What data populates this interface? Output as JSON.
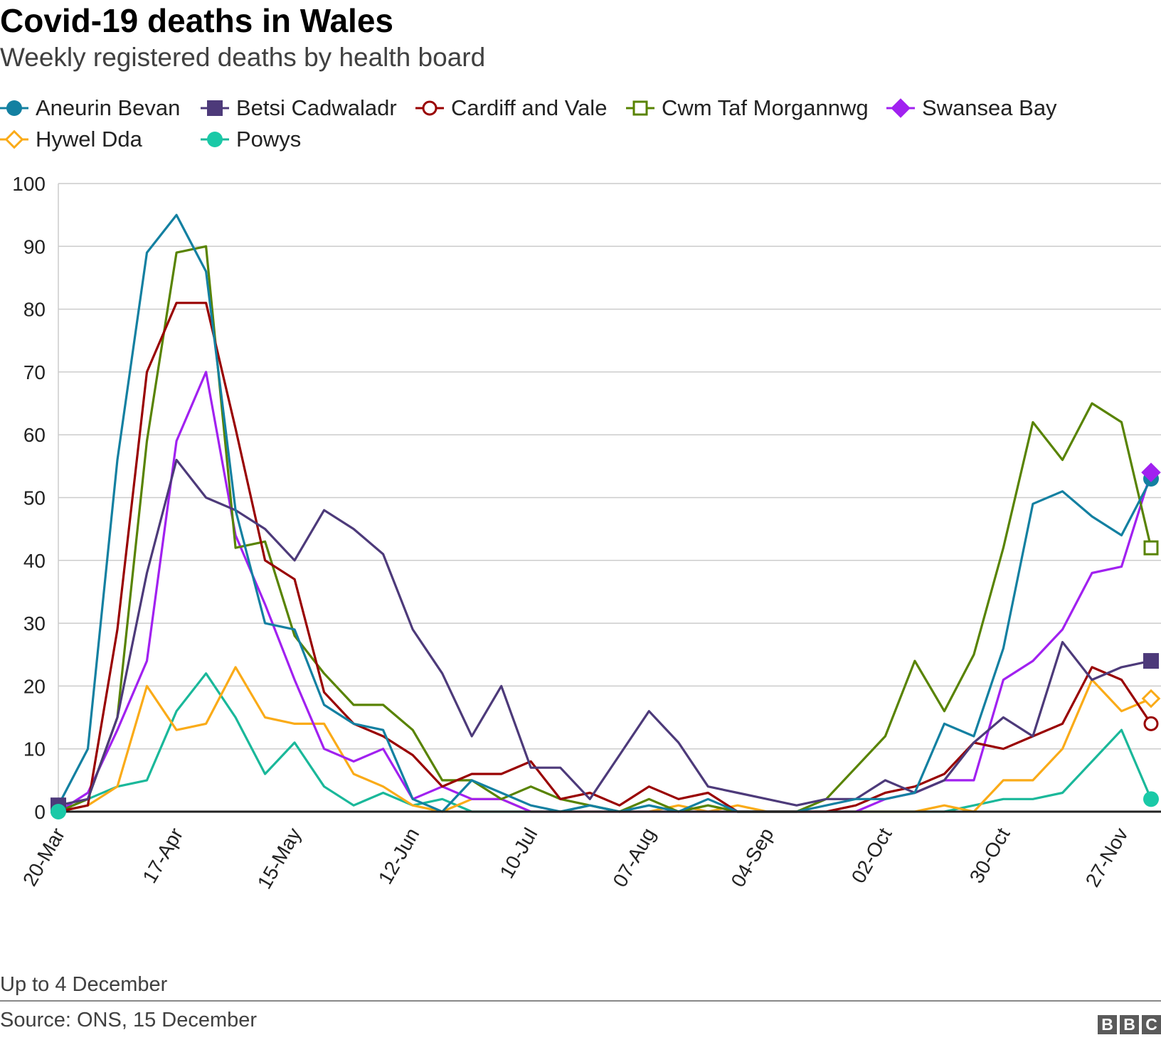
{
  "header": {
    "title": "Covid-19 deaths in Wales",
    "subtitle": "Weekly registered deaths by health board"
  },
  "footer": {
    "note": "Up to 4 December",
    "source": "Source: ONS, 15 December",
    "logo_letters": [
      "B",
      "B",
      "C"
    ]
  },
  "chart_data": {
    "type": "line",
    "title": "Covid-19 deaths in Wales",
    "subtitle": "Weekly registered deaths by health board",
    "xlabel": "",
    "ylabel": "",
    "ylim": [
      0,
      100
    ],
    "yticks": [
      0,
      10,
      20,
      30,
      40,
      50,
      60,
      70,
      80,
      90,
      100
    ],
    "grid": true,
    "legend_position": "top",
    "x": [
      "20-Mar",
      "27-Mar",
      "03-Apr",
      "10-Apr",
      "17-Apr",
      "24-Apr",
      "01-May",
      "08-May",
      "15-May",
      "22-May",
      "29-May",
      "05-Jun",
      "12-Jun",
      "19-Jun",
      "26-Jun",
      "03-Jul",
      "10-Jul",
      "17-Jul",
      "24-Jul",
      "31-Jul",
      "07-Aug",
      "14-Aug",
      "21-Aug",
      "28-Aug",
      "04-Sep",
      "11-Sep",
      "18-Sep",
      "25-Sep",
      "02-Oct",
      "09-Oct",
      "16-Oct",
      "23-Oct",
      "30-Oct",
      "06-Nov",
      "13-Nov",
      "20-Nov",
      "27-Nov",
      "04-Dec"
    ],
    "xtick_labels": [
      "20-Mar",
      "17-Apr",
      "15-May",
      "12-Jun",
      "10-Jul",
      "07-Aug",
      "04-Sep",
      "02-Oct",
      "30-Oct",
      "27-Nov"
    ],
    "series": [
      {
        "name": "Aneurin Bevan",
        "color": "#1380A1",
        "marker": "circle-filled",
        "values": [
          1,
          10,
          56,
          89,
          95,
          86,
          48,
          30,
          29,
          17,
          14,
          13,
          2,
          0,
          5,
          3,
          1,
          0,
          1,
          0,
          1,
          0,
          2,
          0,
          0,
          0,
          1,
          2,
          2,
          3,
          14,
          12,
          26,
          49,
          51,
          47,
          44,
          53
        ]
      },
      {
        "name": "Betsi Cadwaladr",
        "color": "#588286",
        "line_color": "#4D3A7A",
        "marker": "square-filled",
        "values": [
          1,
          2,
          15,
          38,
          56,
          50,
          48,
          45,
          40,
          48,
          45,
          41,
          29,
          22,
          12,
          20,
          7,
          7,
          2,
          9,
          16,
          11,
          4,
          3,
          2,
          1,
          2,
          2,
          5,
          3,
          5,
          11,
          15,
          12,
          27,
          21,
          23,
          24
        ]
      },
      {
        "name": "Cardiff and Vale",
        "color": "#990000",
        "marker": "circle-open",
        "values": [
          0,
          1,
          29,
          70,
          81,
          81,
          61,
          40,
          37,
          19,
          14,
          12,
          9,
          4,
          6,
          6,
          8,
          2,
          3,
          1,
          4,
          2,
          3,
          0,
          0,
          0,
          0,
          1,
          3,
          4,
          6,
          11,
          10,
          12,
          14,
          23,
          21,
          14
        ]
      },
      {
        "name": "Cwm Taf Morgannwg",
        "color": "#588300",
        "marker": "square-open",
        "values": [
          0,
          2,
          15,
          59,
          89,
          90,
          42,
          43,
          28,
          22,
          17,
          17,
          13,
          5,
          5,
          2,
          4,
          2,
          1,
          0,
          2,
          0,
          1,
          0,
          0,
          0,
          2,
          7,
          12,
          24,
          16,
          25,
          42,
          62,
          56,
          65,
          62,
          42
        ]
      },
      {
        "name": "Swansea Bay",
        "color": "#A121F0",
        "marker": "diamond-filled",
        "values": [
          0,
          3,
          13,
          24,
          59,
          70,
          44,
          33,
          21,
          10,
          8,
          10,
          2,
          4,
          2,
          2,
          0,
          0,
          0,
          0,
          0,
          0,
          0,
          0,
          0,
          0,
          0,
          0,
          2,
          3,
          5,
          5,
          21,
          24,
          29,
          38,
          39,
          54
        ]
      },
      {
        "name": "Hywel Dda",
        "color": "#FAAB18",
        "marker": "diamond-open",
        "values": [
          0,
          1,
          4,
          20,
          13,
          14,
          23,
          15,
          14,
          14,
          6,
          4,
          1,
          0,
          2,
          2,
          0,
          0,
          0,
          0,
          0,
          1,
          0,
          1,
          0,
          0,
          0,
          0,
          0,
          0,
          1,
          0,
          5,
          5,
          10,
          21,
          16,
          18
        ]
      },
      {
        "name": "Powys",
        "color": "#1AC9A7",
        "line_color": "#1AB89A",
        "marker": "circle-filled",
        "values": [
          0,
          2,
          4,
          5,
          16,
          22,
          15,
          6,
          11,
          4,
          1,
          3,
          1,
          2,
          0,
          0,
          0,
          0,
          1,
          0,
          1,
          0,
          1,
          0,
          0,
          0,
          0,
          0,
          0,
          0,
          0,
          1,
          2,
          2,
          3,
          8,
          13,
          2
        ]
      }
    ]
  }
}
